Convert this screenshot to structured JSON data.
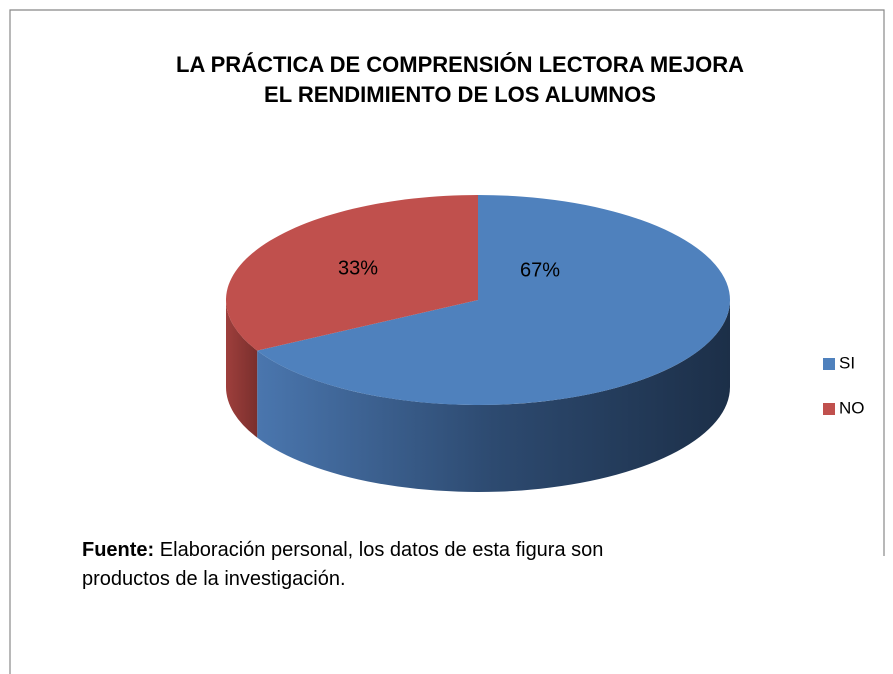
{
  "chart_data": {
    "type": "pie",
    "title": [
      "LA PRÁCTICA DE COMPRENSIÓN LECTORA MEJORA",
      "EL RENDIMIENTO DE LOS ALUMNOS"
    ],
    "categories": [
      "SI",
      "NO"
    ],
    "values": [
      67,
      33
    ],
    "value_labels": [
      "67%",
      "33%"
    ],
    "colors": [
      "#4f81bd",
      "#c0504d"
    ],
    "legend": "right"
  },
  "source": {
    "label": "Fuente:",
    "text": "Elaboración personal, los datos de esta figura son productos de la investigación."
  }
}
